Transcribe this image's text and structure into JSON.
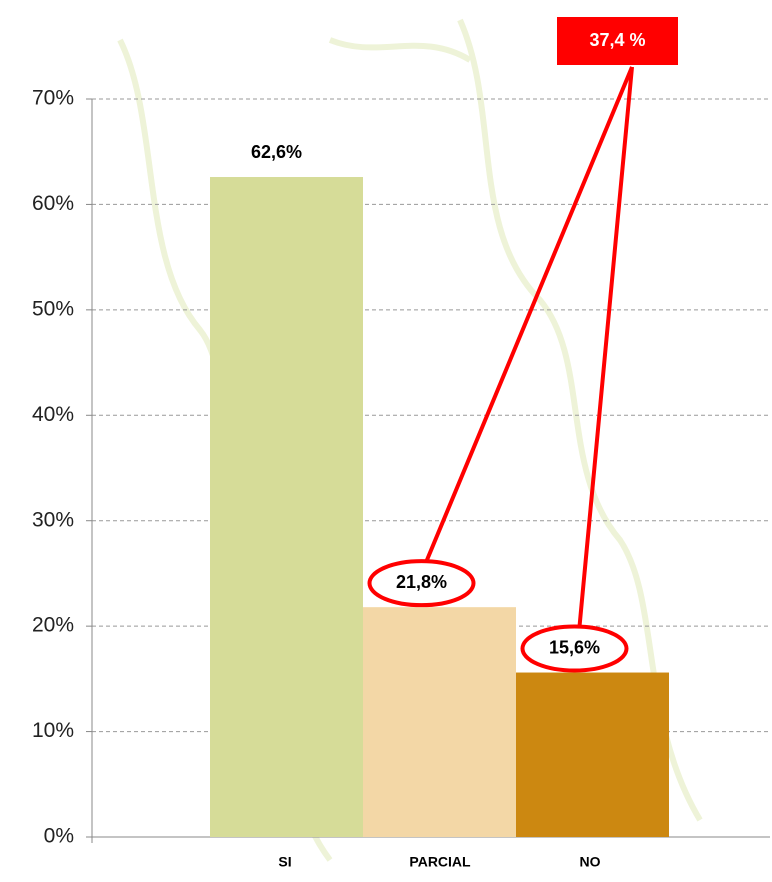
{
  "chart_data": {
    "type": "bar",
    "categories": [
      "SI",
      "PARCIAL",
      "NO"
    ],
    "values": [
      62.6,
      21.8,
      15.6
    ],
    "value_labels": [
      "62,6%",
      "21,8%",
      "15,6%"
    ],
    "colors": [
      "#d6dc98",
      "#f3d7a6",
      "#cc8811"
    ],
    "ylim": [
      0,
      70
    ],
    "yticks": [
      {
        "value": 0,
        "label": "0%"
      },
      {
        "value": 10,
        "label": "10%"
      },
      {
        "value": 20,
        "label": "20%"
      },
      {
        "value": 30,
        "label": "30%"
      },
      {
        "value": 40,
        "label": "40%"
      },
      {
        "value": 50,
        "label": "50%"
      },
      {
        "value": 60,
        "label": "60%"
      },
      {
        "value": 70,
        "label": "70%"
      }
    ],
    "grid": true,
    "annotation": "37,4 %"
  }
}
